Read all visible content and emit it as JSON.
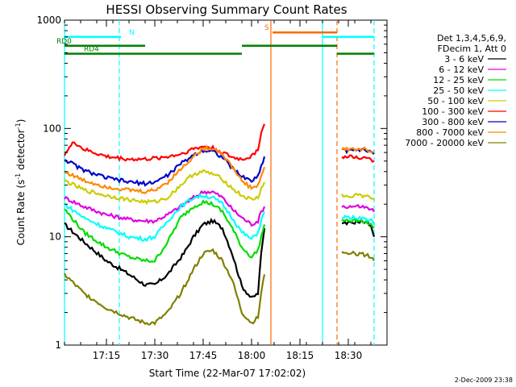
{
  "chart_data": {
    "type": "line",
    "title": "HESSI Observing Summary Count Rates",
    "xlabel": "Start Time (22-Mar-07 17:02:02)",
    "ylabel_main": "Count Rate (s",
    "ylabel_sup1": "-1",
    "ylabel_mid": " detector",
    "ylabel_sup2": "-1",
    "ylabel_end": ")",
    "y_scale": "log",
    "ylim": [
      1,
      1000
    ],
    "xlim_minutes": [
      0,
      100
    ],
    "x_ticks": [
      {
        "label": "17:15",
        "minutes": 13
      },
      {
        "label": "17:30",
        "minutes": 28
      },
      {
        "label": "17:45",
        "minutes": 43
      },
      {
        "label": "18:00",
        "minutes": 58
      },
      {
        "label": "18:15",
        "minutes": 73
      },
      {
        "label": "18:30",
        "minutes": 88
      }
    ],
    "y_ticks": [
      {
        "label": "1",
        "value": 1
      },
      {
        "label": "10",
        "value": 10
      },
      {
        "label": "100",
        "value": 100
      },
      {
        "label": "1000",
        "value": 1000
      }
    ],
    "legend": {
      "header_line1": "Det 1,3,4,5,6,9,",
      "header_line2": "FDecim 1, Att 0",
      "placement": "right"
    },
    "series": [
      {
        "name": "3 - 6 keV",
        "color": "#000000",
        "points": [
          [
            0,
            13
          ],
          [
            6,
            9
          ],
          [
            13,
            6
          ],
          [
            20,
            4.5
          ],
          [
            25,
            3.6
          ],
          [
            28,
            3.6
          ],
          [
            32,
            4.5
          ],
          [
            37,
            7
          ],
          [
            40,
            10
          ],
          [
            43,
            13
          ],
          [
            46,
            14
          ],
          [
            49,
            12
          ],
          [
            52,
            7
          ],
          [
            55,
            3.5
          ],
          [
            58,
            2.7
          ],
          [
            60,
            3
          ],
          [
            61,
            7
          ],
          [
            62,
            12
          ]
        ],
        "points2": [
          [
            86,
            13
          ],
          [
            92,
            14
          ],
          [
            95,
            13
          ],
          [
            96,
            10
          ]
        ]
      },
      {
        "name": "6 - 12 keV",
        "color": "#e000e0",
        "points": [
          [
            0,
            23
          ],
          [
            6,
            19
          ],
          [
            13,
            16
          ],
          [
            20,
            14.5
          ],
          [
            25,
            14
          ],
          [
            28,
            14
          ],
          [
            32,
            16
          ],
          [
            36,
            19
          ],
          [
            40,
            23
          ],
          [
            43,
            26
          ],
          [
            46,
            26
          ],
          [
            49,
            23
          ],
          [
            52,
            18
          ],
          [
            55,
            15
          ],
          [
            58,
            13
          ],
          [
            60,
            14
          ],
          [
            61,
            17
          ],
          [
            62,
            19
          ]
        ],
        "points2": [
          [
            86,
            19
          ],
          [
            92,
            19
          ],
          [
            95,
            18
          ],
          [
            96,
            17
          ]
        ]
      },
      {
        "name": "12 - 25 keV",
        "color": "#00dd00",
        "points": [
          [
            0,
            18
          ],
          [
            6,
            11
          ],
          [
            13,
            8
          ],
          [
            20,
            6.5
          ],
          [
            25,
            6
          ],
          [
            28,
            6
          ],
          [
            32,
            9
          ],
          [
            36,
            15
          ],
          [
            40,
            19
          ],
          [
            43,
            21
          ],
          [
            46,
            20
          ],
          [
            49,
            17
          ],
          [
            52,
            12
          ],
          [
            55,
            8
          ],
          [
            58,
            6.5
          ],
          [
            60,
            7.5
          ],
          [
            61,
            10
          ],
          [
            62,
            13
          ]
        ],
        "points2": [
          [
            86,
            14
          ],
          [
            92,
            14
          ],
          [
            95,
            13
          ],
          [
            96,
            12
          ]
        ]
      },
      {
        "name": "25 - 50 keV",
        "color": "#00ffff",
        "points": [
          [
            0,
            20
          ],
          [
            6,
            15
          ],
          [
            13,
            12
          ],
          [
            20,
            10
          ],
          [
            25,
            9.5
          ],
          [
            28,
            10
          ],
          [
            32,
            14
          ],
          [
            36,
            19
          ],
          [
            40,
            23
          ],
          [
            43,
            24
          ],
          [
            46,
            23
          ],
          [
            49,
            20
          ],
          [
            52,
            15
          ],
          [
            55,
            11
          ],
          [
            58,
            9.5
          ],
          [
            60,
            11
          ],
          [
            61,
            14
          ],
          [
            62,
            17
          ]
        ],
        "points2": [
          [
            86,
            15
          ],
          [
            92,
            15
          ],
          [
            95,
            14
          ],
          [
            96,
            13
          ]
        ]
      },
      {
        "name": "50 - 100 keV",
        "color": "#cccc00",
        "points": [
          [
            0,
            33
          ],
          [
            6,
            27
          ],
          [
            13,
            24
          ],
          [
            20,
            22
          ],
          [
            25,
            21
          ],
          [
            28,
            21
          ],
          [
            32,
            23
          ],
          [
            36,
            30
          ],
          [
            40,
            38
          ],
          [
            43,
            40
          ],
          [
            46,
            38
          ],
          [
            49,
            34
          ],
          [
            52,
            28
          ],
          [
            55,
            24
          ],
          [
            58,
            22
          ],
          [
            60,
            23
          ],
          [
            61,
            28
          ],
          [
            62,
            32
          ]
        ],
        "points2": [
          [
            86,
            24
          ],
          [
            92,
            24
          ],
          [
            95,
            23
          ],
          [
            96,
            22
          ]
        ]
      },
      {
        "name": "100 - 300 keV",
        "color": "#ff0000",
        "points": [
          [
            0,
            58
          ],
          [
            3,
            75
          ],
          [
            6,
            64
          ],
          [
            13,
            55
          ],
          [
            20,
            52
          ],
          [
            25,
            52
          ],
          [
            28,
            53
          ],
          [
            32,
            55
          ],
          [
            36,
            58
          ],
          [
            40,
            65
          ],
          [
            43,
            68
          ],
          [
            46,
            66
          ],
          [
            49,
            60
          ],
          [
            52,
            54
          ],
          [
            55,
            52
          ],
          [
            58,
            55
          ],
          [
            60,
            65
          ],
          [
            61,
            90
          ],
          [
            62,
            110
          ]
        ],
        "points2": [
          [
            86,
            55
          ],
          [
            92,
            54
          ],
          [
            95,
            52
          ],
          [
            96,
            50
          ]
        ]
      },
      {
        "name": "300 - 800 keV",
        "color": "#0000cc",
        "points": [
          [
            0,
            52
          ],
          [
            6,
            41
          ],
          [
            13,
            35
          ],
          [
            20,
            32
          ],
          [
            25,
            31
          ],
          [
            28,
            32
          ],
          [
            32,
            37
          ],
          [
            36,
            47
          ],
          [
            40,
            57
          ],
          [
            43,
            63
          ],
          [
            46,
            62
          ],
          [
            49,
            54
          ],
          [
            52,
            43
          ],
          [
            55,
            36
          ],
          [
            58,
            33
          ],
          [
            60,
            36
          ],
          [
            61,
            45
          ],
          [
            62,
            55
          ]
        ],
        "points2": [
          [
            86,
            62
          ],
          [
            92,
            63
          ],
          [
            95,
            60
          ],
          [
            96,
            58
          ]
        ]
      },
      {
        "name": "800 - 7000 keV",
        "color": "#ff8800",
        "points": [
          [
            0,
            40
          ],
          [
            6,
            33
          ],
          [
            13,
            29
          ],
          [
            20,
            27
          ],
          [
            25,
            26
          ],
          [
            28,
            27
          ],
          [
            32,
            32
          ],
          [
            36,
            42
          ],
          [
            40,
            55
          ],
          [
            43,
            65
          ],
          [
            46,
            66
          ],
          [
            49,
            58
          ],
          [
            52,
            44
          ],
          [
            55,
            33
          ],
          [
            58,
            28
          ],
          [
            60,
            30
          ],
          [
            61,
            36
          ],
          [
            62,
            44
          ]
        ],
        "points2": [
          [
            86,
            64
          ],
          [
            92,
            65
          ],
          [
            95,
            63
          ],
          [
            96,
            61
          ]
        ]
      },
      {
        "name": "7000 - 20000 keV",
        "color": "#808000",
        "points": [
          [
            0,
            4.5
          ],
          [
            6,
            3
          ],
          [
            13,
            2.2
          ],
          [
            20,
            1.8
          ],
          [
            25,
            1.6
          ],
          [
            28,
            1.6
          ],
          [
            32,
            2
          ],
          [
            36,
            3
          ],
          [
            40,
            5
          ],
          [
            43,
            7
          ],
          [
            46,
            7.5
          ],
          [
            49,
            6
          ],
          [
            52,
            4
          ],
          [
            55,
            2
          ],
          [
            58,
            1.6
          ],
          [
            60,
            1.8
          ],
          [
            61,
            3
          ],
          [
            62,
            4.5
          ]
        ],
        "points2": [
          [
            86,
            7
          ],
          [
            92,
            7
          ],
          [
            95,
            6.5
          ],
          [
            96,
            6
          ]
        ]
      }
    ],
    "flag_bars": [
      {
        "label": "N",
        "color": "#00ffff",
        "y_value": 700,
        "segments": [
          [
            0,
            17.5
          ],
          [
            80,
            96
          ]
        ]
      },
      {
        "label": "RD0",
        "color": "#008000",
        "y_value": 580,
        "segments": [
          [
            0,
            25
          ],
          [
            55,
            84.5
          ]
        ]
      },
      {
        "label": "RD4",
        "color": "#008000",
        "y_value": 490,
        "segments": [
          [
            0,
            25
          ],
          [
            25,
            55
          ],
          [
            84.5,
            96
          ]
        ]
      },
      {
        "label": "S",
        "color": "#ff6600",
        "y_value": 770,
        "segments": [
          [
            64.5,
            84.5
          ]
        ]
      }
    ],
    "vertical_markers": [
      {
        "minutes": 0,
        "color": "#00ffff",
        "style": "solid"
      },
      {
        "minutes": 17,
        "color": "#00ffff",
        "style": "dashed"
      },
      {
        "minutes": 64,
        "color": "#ff6600",
        "style": "solid"
      },
      {
        "minutes": 80,
        "color": "#00ffff",
        "style": "solid"
      },
      {
        "minutes": 84.5,
        "color": "#ff6600",
        "style": "dashed"
      },
      {
        "minutes": 96,
        "color": "#00ffff",
        "style": "dashed"
      }
    ],
    "timestamp": "2-Dec-2009 23:38"
  }
}
